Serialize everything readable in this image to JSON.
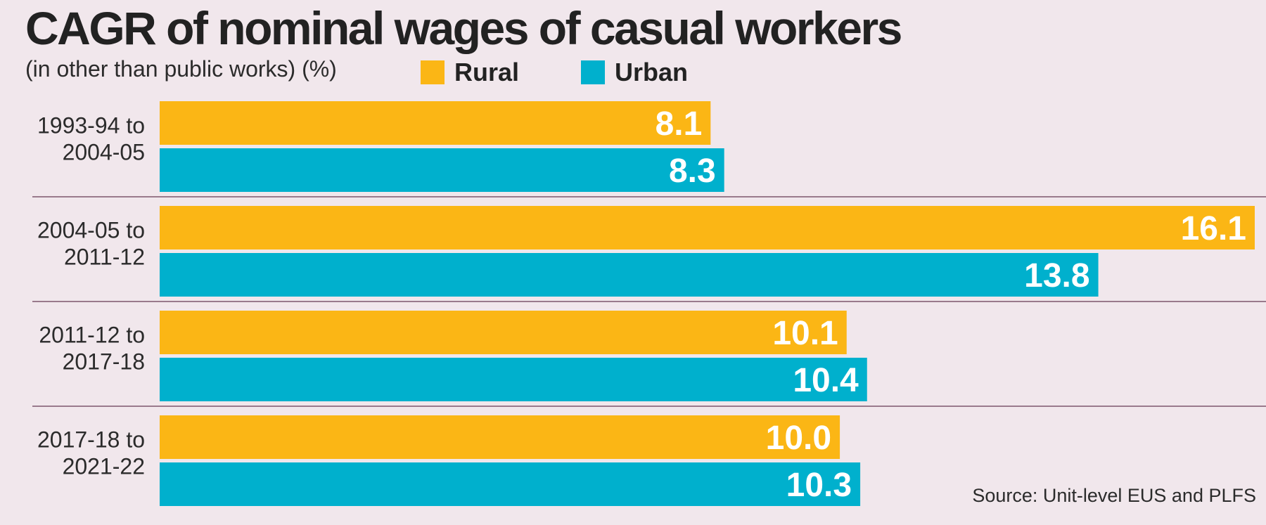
{
  "chart_data": {
    "type": "bar",
    "orientation": "horizontal",
    "title": "CAGR of nominal wages of casual workers",
    "subtitle": "(in other than public works) (%)",
    "categories": [
      [
        "1993-94 to",
        "2004-05"
      ],
      [
        "2004-05 to",
        "2011-12"
      ],
      [
        "2011-12 to",
        "2017-18"
      ],
      [
        "2017-18 to",
        "2021-22"
      ]
    ],
    "series": [
      {
        "name": "Rural",
        "color": "#fbb615",
        "values": [
          8.1,
          16.1,
          10.1,
          10.0
        ],
        "labels": [
          "8.1",
          "16.1",
          "10.1",
          "10.0"
        ]
      },
      {
        "name": "Urban",
        "color": "#00b0cd",
        "values": [
          8.3,
          13.8,
          10.4,
          10.3
        ],
        "labels": [
          "8.3",
          "13.8",
          "10.4",
          "10.3"
        ]
      }
    ],
    "xlim": [
      0,
      16.1
    ],
    "legend": "top",
    "grid": false,
    "source": "Source: Unit-level EUS and PLFS"
  }
}
